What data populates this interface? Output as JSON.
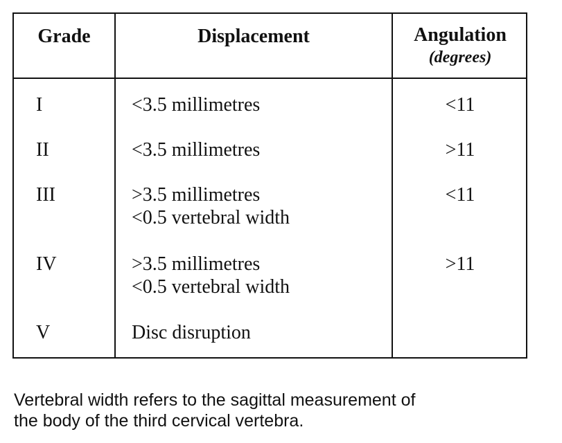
{
  "table": {
    "columns": [
      {
        "title": "Grade"
      },
      {
        "title": "Displacement"
      },
      {
        "title": "Angulation",
        "subtitle": "(degrees)"
      }
    ],
    "rows": [
      {
        "grade": "I",
        "displacement": [
          "<3.5 millimetres"
        ],
        "angulation": "<11"
      },
      {
        "grade": "II",
        "displacement": [
          "<3.5 millimetres"
        ],
        "angulation": ">11"
      },
      {
        "grade": "III",
        "displacement": [
          ">3.5 millimetres",
          "<0.5 vertebral width"
        ],
        "angulation": "<11"
      },
      {
        "grade": "IV",
        "displacement": [
          ">3.5 millimetres",
          "<0.5 vertebral width"
        ],
        "angulation": ">11"
      },
      {
        "grade": "V",
        "displacement": [
          "Disc disruption"
        ]
      }
    ]
  },
  "note": [
    "Vertebral width refers to the sagittal measurement of",
    "the body of the third cervical vertebra."
  ]
}
